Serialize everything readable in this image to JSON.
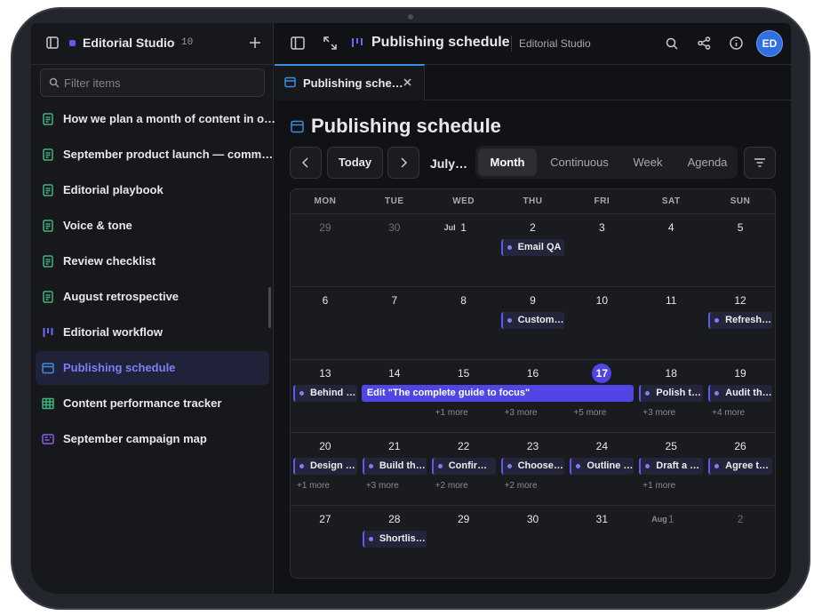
{
  "sidebar": {
    "workspace": "Editorial Studio",
    "count": "10",
    "filter_placeholder": "Filter items",
    "items": [
      {
        "label": "How we plan a month of content in o…",
        "icon": "doc"
      },
      {
        "label": "September product launch — comm…",
        "icon": "doc"
      },
      {
        "label": "Editorial playbook",
        "icon": "doc"
      },
      {
        "label": "Voice & tone",
        "icon": "doc"
      },
      {
        "label": "Review checklist",
        "icon": "doc"
      },
      {
        "label": "August retrospective",
        "icon": "doc"
      },
      {
        "label": "Editorial workflow",
        "icon": "board"
      },
      {
        "label": "Publishing schedule",
        "icon": "calendar",
        "selected": true
      },
      {
        "label": "Content performance tracker",
        "icon": "table"
      },
      {
        "label": "September campaign map",
        "icon": "map"
      }
    ]
  },
  "topbar": {
    "title": "Publishing schedule",
    "workspace": "Editorial Studio",
    "avatar": "ED"
  },
  "tab": {
    "label": "Publishing sche…"
  },
  "page": {
    "title": "Publishing schedule",
    "today": "Today",
    "period": "July…",
    "views": [
      "Month",
      "Continuous",
      "Week",
      "Agenda"
    ],
    "active_view": 0
  },
  "calendar": {
    "weekdays": [
      "MON",
      "TUE",
      "WED",
      "THU",
      "FRI",
      "SAT",
      "SUN"
    ],
    "weeks": [
      {
        "days": [
          {
            "date": "29",
            "muted": true
          },
          {
            "date": "30",
            "muted": true
          },
          {
            "month": "Jul",
            "date": "1"
          },
          {
            "date": "2",
            "events": [
              {
                "text": "Email QA"
              }
            ]
          },
          {
            "date": "3"
          },
          {
            "date": "4"
          },
          {
            "date": "5"
          }
        ]
      },
      {
        "days": [
          {
            "date": "6"
          },
          {
            "date": "7"
          },
          {
            "date": "8"
          },
          {
            "date": "9",
            "events": [
              {
                "text": "Custom…"
              }
            ]
          },
          {
            "date": "10"
          },
          {
            "date": "11"
          },
          {
            "date": "12",
            "events": [
              {
                "text": "Refresh…"
              }
            ]
          }
        ]
      },
      {
        "days": [
          {
            "date": "13",
            "events": [
              {
                "text": "Behind …"
              }
            ]
          },
          {
            "date": "14",
            "events": [
              {
                "text": "Edit \"The complete guide to focus\"",
                "span": 4
              }
            ]
          },
          {
            "date": "15",
            "more": "+1 more"
          },
          {
            "date": "16",
            "more": "+3 more"
          },
          {
            "date": "17",
            "today": true,
            "more": "+5 more"
          },
          {
            "date": "18",
            "events": [
              {
                "text": "Polish t…"
              }
            ],
            "more": "+3 more"
          },
          {
            "date": "19",
            "events": [
              {
                "text": "Audit th…"
              }
            ],
            "more": "+4 more"
          }
        ]
      },
      {
        "days": [
          {
            "date": "20",
            "events": [
              {
                "text": "Design …"
              }
            ],
            "more": "+1 more"
          },
          {
            "date": "21",
            "events": [
              {
                "text": "Build th…"
              }
            ],
            "more": "+3 more"
          },
          {
            "date": "22",
            "events": [
              {
                "text": "Confir…"
              }
            ],
            "more": "+2 more"
          },
          {
            "date": "23",
            "events": [
              {
                "text": "Choose…"
              }
            ],
            "more": "+2 more"
          },
          {
            "date": "24",
            "events": [
              {
                "text": "Outline …"
              }
            ]
          },
          {
            "date": "25",
            "events": [
              {
                "text": "Draft a …"
              }
            ],
            "more": "+1 more"
          },
          {
            "date": "26",
            "events": [
              {
                "text": "Agree t…"
              }
            ]
          }
        ]
      },
      {
        "days": [
          {
            "date": "27"
          },
          {
            "date": "28",
            "events": [
              {
                "text": "Shortlis…"
              }
            ]
          },
          {
            "date": "29"
          },
          {
            "date": "30"
          },
          {
            "date": "31"
          },
          {
            "month": "Aug",
            "date": "1",
            "muted": true
          },
          {
            "date": "2",
            "muted": true
          }
        ]
      }
    ]
  }
}
